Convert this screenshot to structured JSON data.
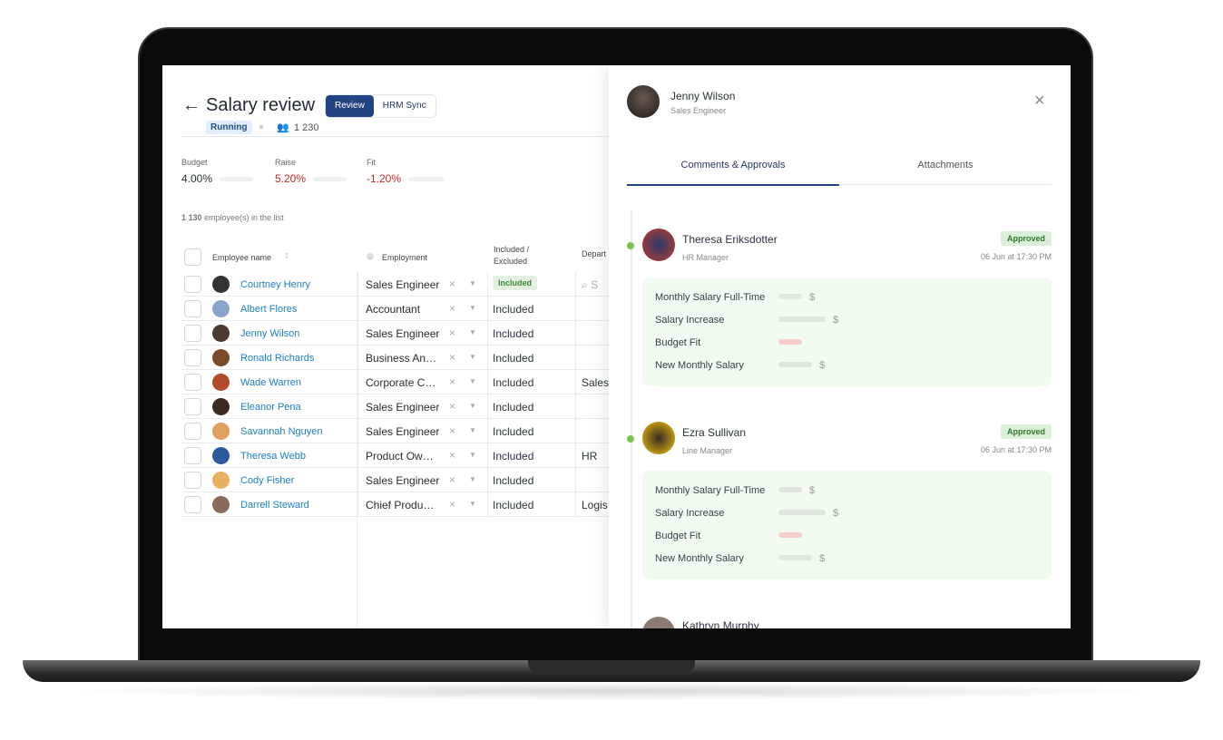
{
  "header": {
    "back_icon": "arrow-left-icon",
    "title": "Salary review",
    "tabs": [
      "Review",
      "HRM Sync"
    ],
    "status": "Running",
    "count": "1 230"
  },
  "metrics": [
    {
      "label": "Budget",
      "value": "4.00%",
      "color": "#2b3340"
    },
    {
      "label": "Raise",
      "value": "5.20%",
      "color": "#c62828"
    },
    {
      "label": "Fit",
      "value": "-1.20%",
      "color": "#c62828"
    }
  ],
  "list_count_bold": "1 130",
  "list_count_text": " employee(s) in the list",
  "columns": {
    "name": "Employee name",
    "employment": "Employment",
    "included": "Included / Excluded",
    "department": "Depart"
  },
  "dept_search_placeholder": "S",
  "rows": [
    {
      "name": "Courtney Henry",
      "employment": "Sales Engineer",
      "included": "Included",
      "dept": "",
      "color": "#333"
    },
    {
      "name": "Albert Flores",
      "employment": "Accountant",
      "included": "Included",
      "dept": "",
      "color": "#8aa3c8"
    },
    {
      "name": "Jenny Wilson",
      "employment": "Sales Engineer",
      "included": "Included",
      "dept": "",
      "color": "#4a3a30"
    },
    {
      "name": "Ronald Richards",
      "employment": "Business An…",
      "included": "Included",
      "dept": "",
      "color": "#7a4a2a"
    },
    {
      "name": "Wade Warren",
      "employment": "Corporate C…",
      "included": "Included",
      "dept": "Sales",
      "color": "#b04a2a"
    },
    {
      "name": "Eleanor Pena",
      "employment": "Sales Engineer",
      "included": "Included",
      "dept": "",
      "color": "#3a2a20"
    },
    {
      "name": "Savannah Nguyen",
      "employment": "Sales Engineer",
      "included": "Included",
      "dept": "",
      "color": "#e0a060"
    },
    {
      "name": "Theresa Webb",
      "employment": "Product Ow…",
      "included": "Included",
      "dept": "HR",
      "color": "#2a5a9a"
    },
    {
      "name": "Cody Fisher",
      "employment": "Sales Engineer",
      "included": "Included",
      "dept": "",
      "color": "#e8b060"
    },
    {
      "name": "Darrell Steward",
      "employment": "Chief Produ…",
      "included": "Included",
      "dept": "Logis",
      "color": "#8a6a5a"
    }
  ],
  "panel": {
    "user_name": "Jenny Wilson",
    "user_role": "Sales Engineer",
    "close_icon": "close-icon",
    "tabs": [
      "Comments & Approvals",
      "Attachments"
    ],
    "approvals": [
      {
        "name": "Theresa Eriksdotter",
        "role": "HR Manager",
        "status": "Approved",
        "date": "06 Jun at 17:30 PM"
      },
      {
        "name": "Ezra Sullivan",
        "role": "Line Manager",
        "status": "Approved",
        "date": "06 Jun at 17:30 PM"
      }
    ],
    "next_name": "Kathryn Murphy",
    "fields": [
      "Monthly Salary Full-Time",
      "Salary Increase",
      "Budget Fit",
      "New Monthly Salary"
    ],
    "currency": "$"
  }
}
